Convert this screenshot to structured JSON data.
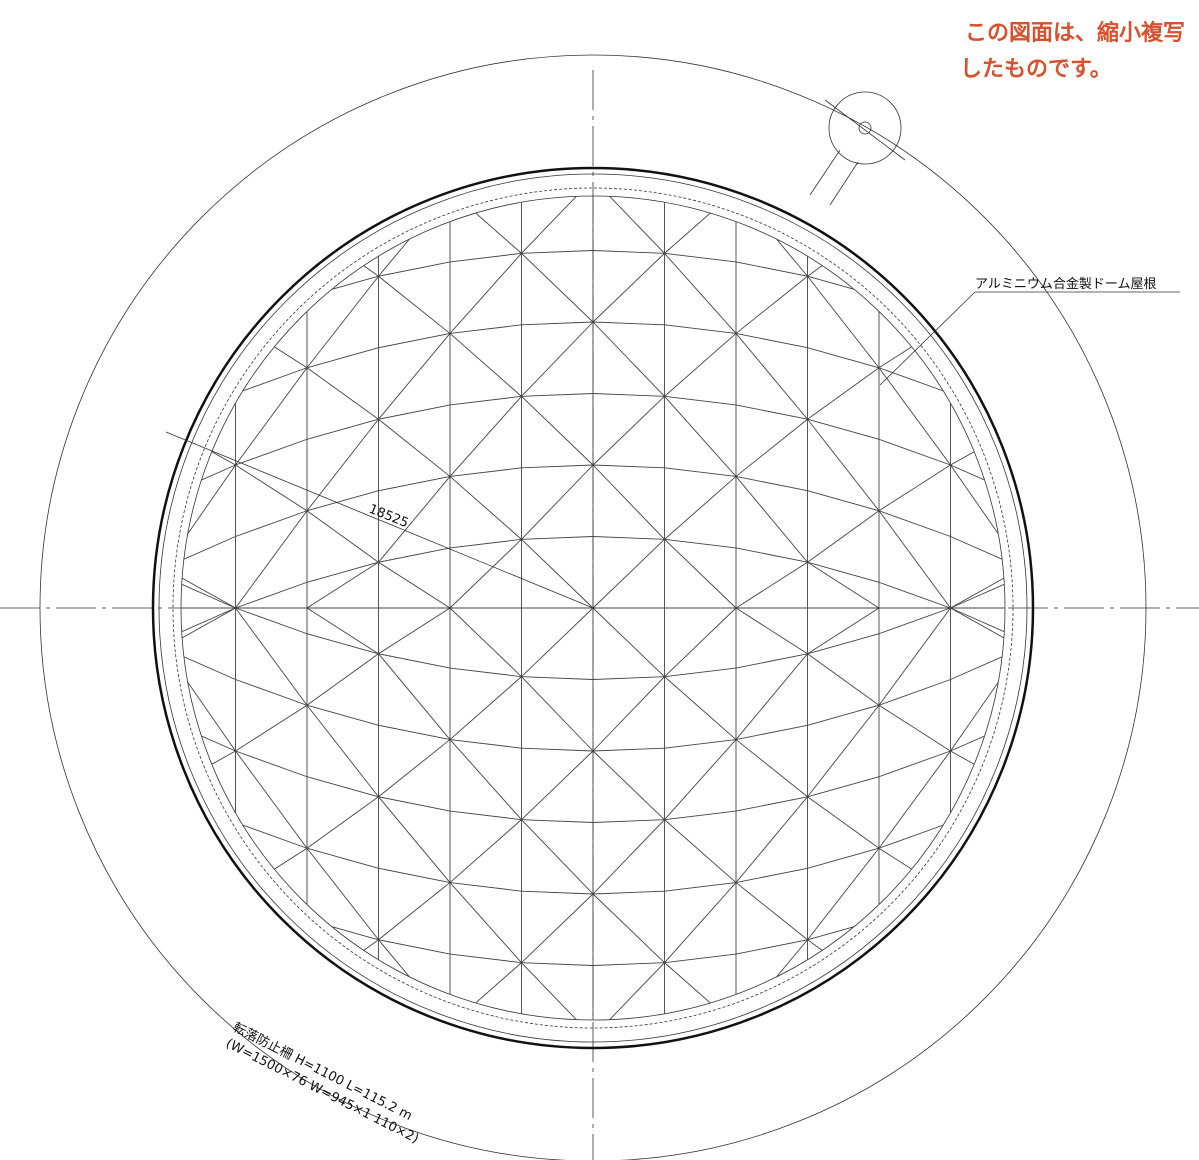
{
  "stamp": {
    "line1": "この図面は、縮小複写",
    "line2": "したものです。"
  },
  "callout": {
    "roof": "アルミニウム合金製ドーム屋根",
    "radius": "18525"
  },
  "railing": {
    "line1": "転落防止柵 H=1100 L=115.2 m",
    "line2": "(W=1500×76 W=945×1 110×2)"
  }
}
